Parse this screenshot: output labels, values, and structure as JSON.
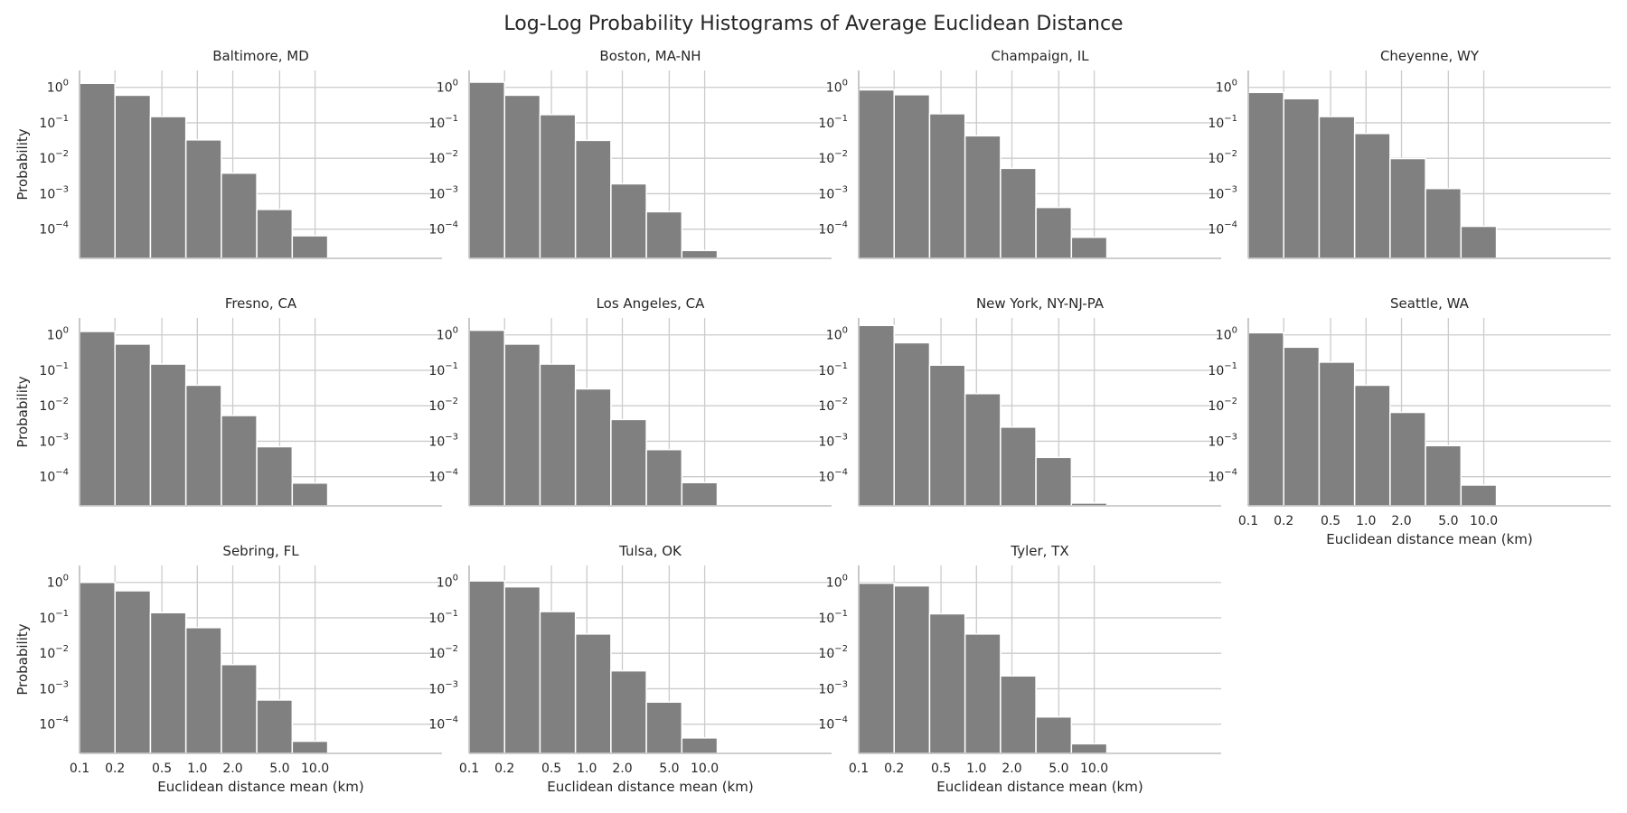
{
  "title": "Log-Log Probability Histograms of Average Euclidean Distance",
  "colors": {
    "bar": "#808080",
    "bar_edge": "#ffffff",
    "grid": "#cccccc",
    "axis": "#bfbfbf",
    "text": "#262626"
  },
  "chart_data": {
    "type": "bar",
    "layout": "small-multiples-4x3",
    "xlabel": "Euclidean distance mean (km)",
    "ylabel": "Probability",
    "xscale": "log",
    "yscale": "log",
    "xticks": [
      0.1,
      0.2,
      0.5,
      1.0,
      2.0,
      5.0,
      10.0
    ],
    "xtick_labels": [
      "0.1",
      "0.2",
      "0.5",
      "1.0",
      "2.0",
      "5.0",
      "10.0"
    ],
    "yticks": [
      0.0001,
      0.001,
      0.01,
      0.1,
      1
    ],
    "ytick_labels": [
      "10",
      "10",
      "10",
      "10",
      "10"
    ],
    "ytick_exponents": [
      "−4",
      "−3",
      "−2",
      "−1",
      "0"
    ],
    "ylim": [
      1.5e-05,
      3.0
    ],
    "grid": true,
    "bin_edges": [
      0.1,
      0.2,
      0.4,
      0.8,
      1.6,
      3.2,
      6.4,
      12.8,
      25.6,
      51.2
    ],
    "panels": [
      {
        "name": "Baltimore, MD",
        "values": [
          1.3,
          0.6,
          0.15,
          0.033,
          0.0038,
          0.00036,
          6.5e-05
        ]
      },
      {
        "name": "Boston, MA-NH",
        "values": [
          1.4,
          0.6,
          0.17,
          0.032,
          0.0019,
          0.00031,
          2.5e-05
        ]
      },
      {
        "name": "Champaign, IL",
        "values": [
          0.85,
          0.62,
          0.18,
          0.043,
          0.0052,
          0.00041,
          5.9e-05
        ]
      },
      {
        "name": "Cheyenne, WY",
        "values": [
          0.72,
          0.48,
          0.15,
          0.05,
          0.0098,
          0.0014,
          0.00012
        ]
      },
      {
        "name": "Fresno, CA",
        "values": [
          1.25,
          0.55,
          0.15,
          0.038,
          0.0053,
          0.0007,
          6.6e-05
        ]
      },
      {
        "name": "Los Angeles, CA",
        "values": [
          1.35,
          0.55,
          0.15,
          0.03,
          0.0041,
          0.00058,
          6.8e-05
        ]
      },
      {
        "name": "New York, NY-NJ-PA",
        "values": [
          1.85,
          0.6,
          0.14,
          0.022,
          0.0025,
          0.00035,
          1.8e-05
        ]
      },
      {
        "name": "Seattle, WA",
        "values": [
          1.15,
          0.45,
          0.17,
          0.038,
          0.0065,
          0.00075,
          5.8e-05
        ]
      },
      {
        "name": "Sebring, FL",
        "values": [
          1.0,
          0.58,
          0.14,
          0.053,
          0.0048,
          0.00048,
          3.3e-05
        ]
      },
      {
        "name": "Tulsa, OK",
        "values": [
          1.1,
          0.75,
          0.15,
          0.035,
          0.0032,
          0.00042,
          4.1e-05
        ]
      },
      {
        "name": "Tyler, TX",
        "values": [
          0.95,
          0.8,
          0.13,
          0.035,
          0.0023,
          0.00016,
          2.8e-05
        ]
      }
    ],
    "xlabel_panels": [
      "Seattle, WA",
      "Sebring, FL",
      "Tulsa, OK",
      "Tyler, TX"
    ],
    "ylabel_panels": [
      "Baltimore, MD",
      "Fresno, CA",
      "Sebring, FL"
    ]
  }
}
